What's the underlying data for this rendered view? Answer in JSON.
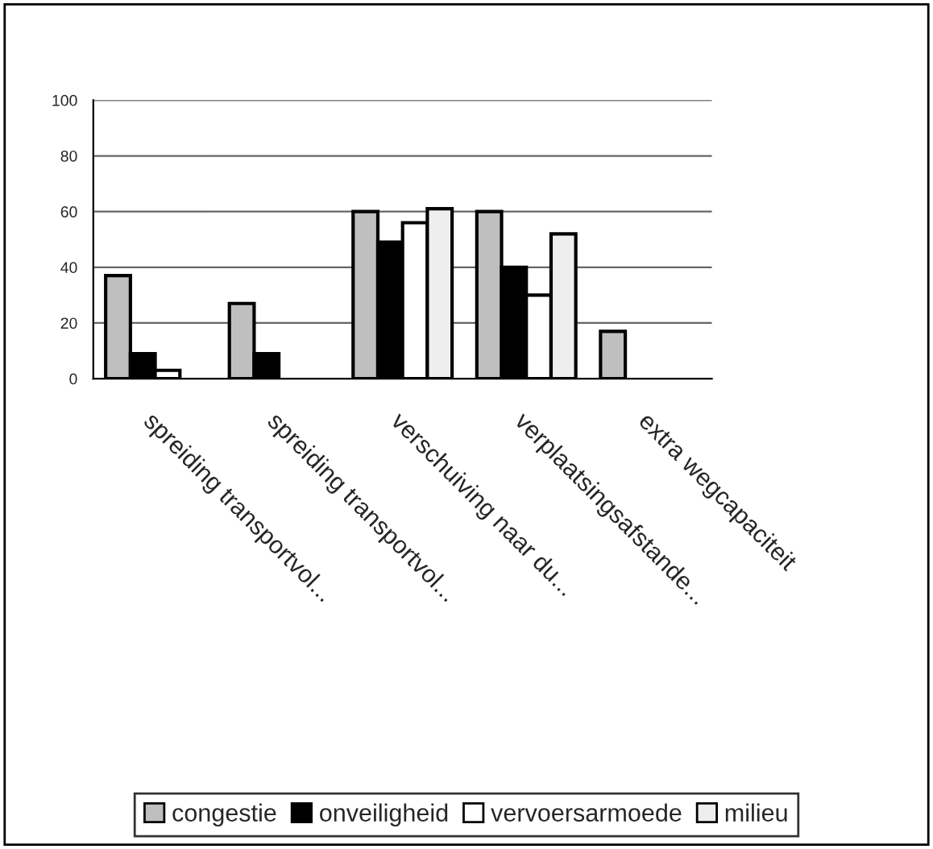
{
  "chart_data": {
    "type": "bar",
    "categories": [
      "spreiding transportvol...",
      "spreiding transportvol...",
      "verschuiving naar du...",
      "verplaatsingsafstande...",
      "extra wegcapaciteit"
    ],
    "series": [
      {
        "name": "congestie",
        "color": "#bfbfbf",
        "values": [
          37,
          27,
          60,
          60,
          17
        ]
      },
      {
        "name": "onveiligheid",
        "color": "#000000",
        "values": [
          9,
          9,
          49,
          40,
          null
        ]
      },
      {
        "name": "vervoersarmoede",
        "color": "#ffffff",
        "values": [
          3,
          null,
          56,
          30,
          null
        ]
      },
      {
        "name": "milieu",
        "color": "#eeeeee",
        "values": [
          null,
          null,
          61,
          52,
          null
        ]
      }
    ],
    "ylim": [
      0,
      100
    ],
    "yticks": [
      0,
      20,
      40,
      60,
      80,
      100
    ],
    "grid": "y",
    "legend": "bottom"
  }
}
